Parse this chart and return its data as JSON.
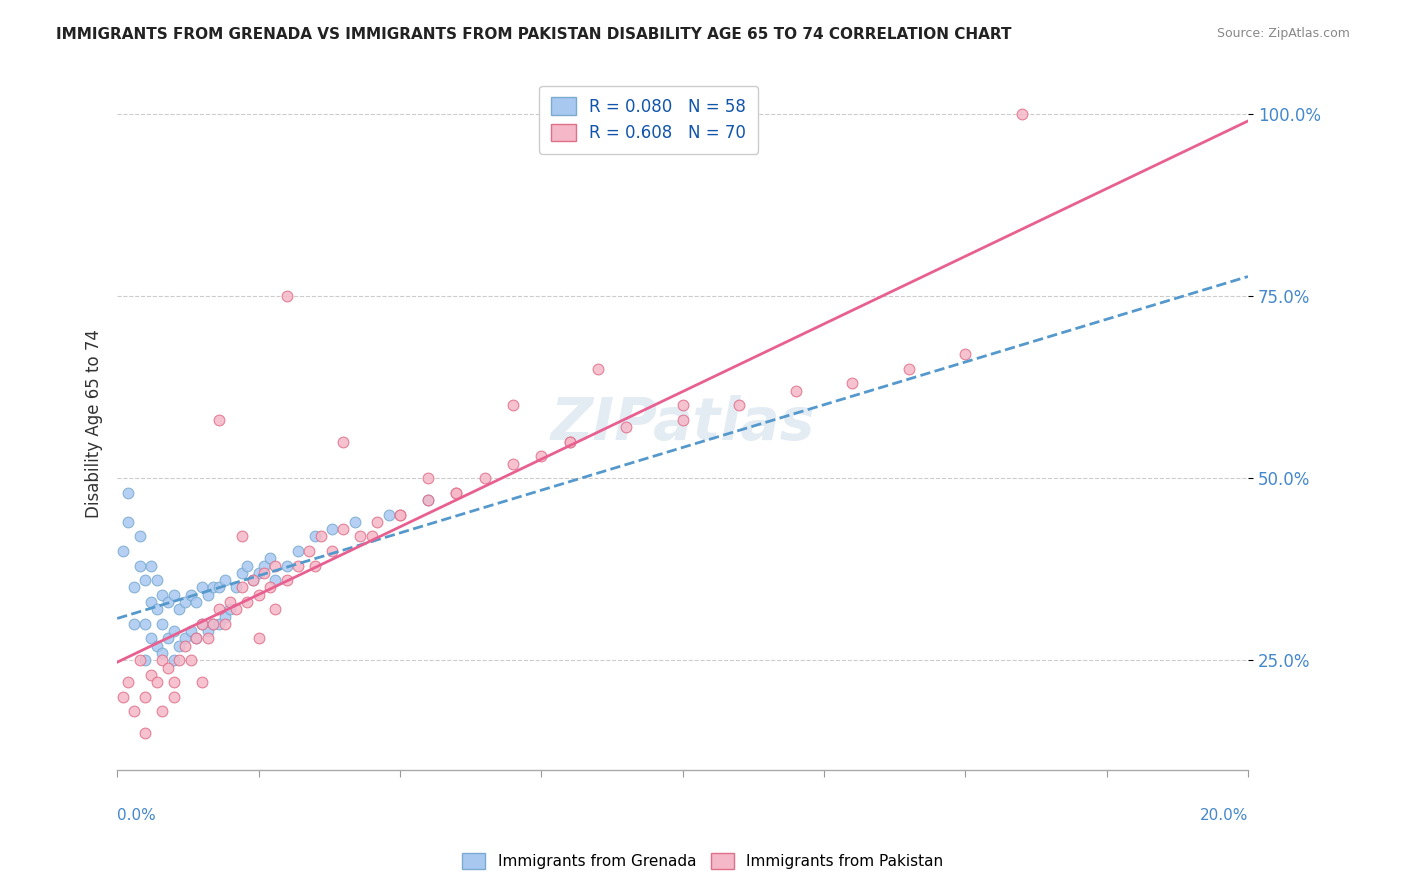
{
  "title": "IMMIGRANTS FROM GRENADA VS IMMIGRANTS FROM PAKISTAN DISABILITY AGE 65 TO 74 CORRELATION CHART",
  "source": "Source: ZipAtlas.com",
  "ylabel": "Disability Age 65 to 74",
  "yticks": [
    "25.0%",
    "50.0%",
    "75.0%",
    "100.0%"
  ],
  "ytick_vals": [
    0.25,
    0.5,
    0.75,
    1.0
  ],
  "xlim": [
    0.0,
    0.2
  ],
  "ylim": [
    0.1,
    1.05
  ],
  "grenada_color": "#a8c8f0",
  "grenada_edge": "#7aaad0",
  "pakistan_color": "#f5b8c8",
  "pakistan_edge": "#e0708a",
  "grenada_line_color": "#5599cc",
  "pakistan_line_color": "#e86090",
  "grenada_R": 0.08,
  "grenada_N": 58,
  "pakistan_R": 0.608,
  "pakistan_N": 70,
  "watermark": "ZIPatlas",
  "legend_label1": "Immigrants from Grenada",
  "legend_label2": "Immigrants from Pakistan",
  "grenada_scatter_x": [
    0.001,
    0.002,
    0.002,
    0.003,
    0.003,
    0.004,
    0.004,
    0.005,
    0.005,
    0.005,
    0.006,
    0.006,
    0.006,
    0.007,
    0.007,
    0.007,
    0.008,
    0.008,
    0.008,
    0.009,
    0.009,
    0.01,
    0.01,
    0.01,
    0.011,
    0.011,
    0.012,
    0.012,
    0.013,
    0.013,
    0.014,
    0.014,
    0.015,
    0.015,
    0.016,
    0.016,
    0.017,
    0.017,
    0.018,
    0.018,
    0.019,
    0.019,
    0.02,
    0.021,
    0.022,
    0.023,
    0.024,
    0.025,
    0.026,
    0.027,
    0.028,
    0.03,
    0.032,
    0.035,
    0.038,
    0.042,
    0.048,
    0.055
  ],
  "grenada_scatter_y": [
    0.4,
    0.44,
    0.48,
    0.3,
    0.35,
    0.38,
    0.42,
    0.25,
    0.3,
    0.36,
    0.28,
    0.33,
    0.38,
    0.27,
    0.32,
    0.36,
    0.26,
    0.3,
    0.34,
    0.28,
    0.33,
    0.25,
    0.29,
    0.34,
    0.27,
    0.32,
    0.28,
    0.33,
    0.29,
    0.34,
    0.28,
    0.33,
    0.3,
    0.35,
    0.29,
    0.34,
    0.3,
    0.35,
    0.3,
    0.35,
    0.31,
    0.36,
    0.32,
    0.35,
    0.37,
    0.38,
    0.36,
    0.37,
    0.38,
    0.39,
    0.36,
    0.38,
    0.4,
    0.42,
    0.43,
    0.44,
    0.45,
    0.47
  ],
  "pakistan_scatter_x": [
    0.001,
    0.002,
    0.003,
    0.004,
    0.005,
    0.006,
    0.007,
    0.008,
    0.009,
    0.01,
    0.011,
    0.012,
    0.013,
    0.014,
    0.015,
    0.016,
    0.017,
    0.018,
    0.019,
    0.02,
    0.021,
    0.022,
    0.023,
    0.024,
    0.025,
    0.026,
    0.027,
    0.028,
    0.03,
    0.032,
    0.034,
    0.036,
    0.038,
    0.04,
    0.043,
    0.046,
    0.05,
    0.055,
    0.06,
    0.065,
    0.07,
    0.075,
    0.08,
    0.09,
    0.1,
    0.11,
    0.12,
    0.13,
    0.14,
    0.15,
    0.018,
    0.022,
    0.028,
    0.035,
    0.045,
    0.06,
    0.08,
    0.1,
    0.05,
    0.025,
    0.015,
    0.01,
    0.008,
    0.005,
    0.03,
    0.04,
    0.055,
    0.07,
    0.085,
    0.16
  ],
  "pakistan_scatter_y": [
    0.2,
    0.22,
    0.18,
    0.25,
    0.2,
    0.23,
    0.22,
    0.25,
    0.24,
    0.22,
    0.25,
    0.27,
    0.25,
    0.28,
    0.3,
    0.28,
    0.3,
    0.32,
    0.3,
    0.33,
    0.32,
    0.35,
    0.33,
    0.36,
    0.34,
    0.37,
    0.35,
    0.38,
    0.36,
    0.38,
    0.4,
    0.42,
    0.4,
    0.43,
    0.42,
    0.44,
    0.45,
    0.47,
    0.48,
    0.5,
    0.52,
    0.53,
    0.55,
    0.57,
    0.58,
    0.6,
    0.62,
    0.63,
    0.65,
    0.67,
    0.58,
    0.42,
    0.32,
    0.38,
    0.42,
    0.48,
    0.55,
    0.6,
    0.45,
    0.28,
    0.22,
    0.2,
    0.18,
    0.15,
    0.75,
    0.55,
    0.5,
    0.6,
    0.65,
    1.0
  ]
}
